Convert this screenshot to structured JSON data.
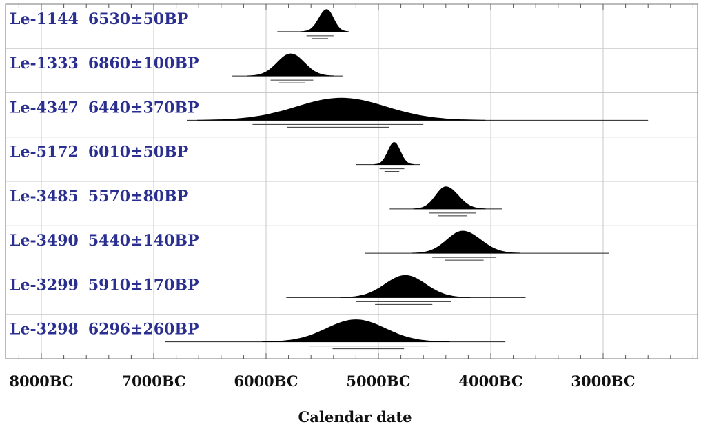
{
  "chart_data": {
    "type": "area",
    "title": "",
    "xlabel": "Calendar date",
    "ylabel": "",
    "x_axis": {
      "reversed": true,
      "unit": "years BC",
      "range": [
        8400,
        2000
      ],
      "tick_values": [
        8000,
        7000,
        6000,
        5000,
        4000,
        3000
      ],
      "tick_labels": [
        "8000BC",
        "7000BC",
        "6000BC",
        "5000BC",
        "4000BC",
        "3000BC"
      ]
    },
    "grid": true,
    "colors": {
      "fill": "#000000",
      "label": "#2a2f8f",
      "grid": "#c8c8c8"
    },
    "series": [
      {
        "name": "Le-1144 6530±50BP",
        "lab_code": "Le-1144",
        "bp_date": "6530±50BP",
        "peak_bc": 5460,
        "sd_left": 70,
        "sd_right": 60,
        "tail_bc": [
          5900,
          5300
        ],
        "range_bc": [
          5640,
          5400
        ]
      },
      {
        "name": "Le-1333 6860±100BP",
        "lab_code": "Le-1333",
        "bp_date": "6860±100BP",
        "peak_bc": 5780,
        "sd_left": 120,
        "sd_right": 120,
        "tail_bc": [
          6300,
          5320
        ],
        "range_bc": [
          5960,
          5580
        ]
      },
      {
        "name": "Le-4347 6440±370BP",
        "lab_code": "Le-4347",
        "bp_date": "6440±370BP",
        "peak_bc": 5330,
        "sd_left": 400,
        "sd_right": 400,
        "tail_bc": [
          6700,
          2600
        ],
        "range_bc": [
          6120,
          4600
        ]
      },
      {
        "name": "Le-5172 6010±50BP",
        "lab_code": "Le-5172",
        "bp_date": "6010±50BP",
        "peak_bc": 4860,
        "sd_left": 55,
        "sd_right": 55,
        "tail_bc": [
          5200,
          4630
        ],
        "range_bc": [
          4990,
          4770
        ]
      },
      {
        "name": "Le-3485 5570±80BP",
        "lab_code": "Le-3485",
        "bp_date": "5570±80BP",
        "peak_bc": 4400,
        "sd_left": 90,
        "sd_right": 110,
        "tail_bc": [
          4900,
          3900
        ],
        "range_bc": [
          4550,
          4130
        ]
      },
      {
        "name": "Le-3490 5440±140BP",
        "lab_code": "Le-3490",
        "bp_date": "5440±140BP",
        "peak_bc": 4250,
        "sd_left": 140,
        "sd_right": 160,
        "tail_bc": [
          5120,
          2950
        ],
        "range_bc": [
          4520,
          3950
        ]
      },
      {
        "name": "Le-3299 5910±170BP",
        "lab_code": "Le-3299",
        "bp_date": "5910±170BP",
        "peak_bc": 4760,
        "sd_left": 180,
        "sd_right": 180,
        "tail_bc": [
          5820,
          3690
        ],
        "range_bc": [
          5200,
          4350
        ]
      },
      {
        "name": "Le-3298 6296±260BP",
        "lab_code": "Le-3298",
        "bp_date": "6296±260BP",
        "peak_bc": 5200,
        "sd_left": 260,
        "sd_right": 260,
        "tail_bc": [
          6900,
          3870
        ],
        "range_bc": [
          5620,
          4560
        ]
      }
    ]
  }
}
